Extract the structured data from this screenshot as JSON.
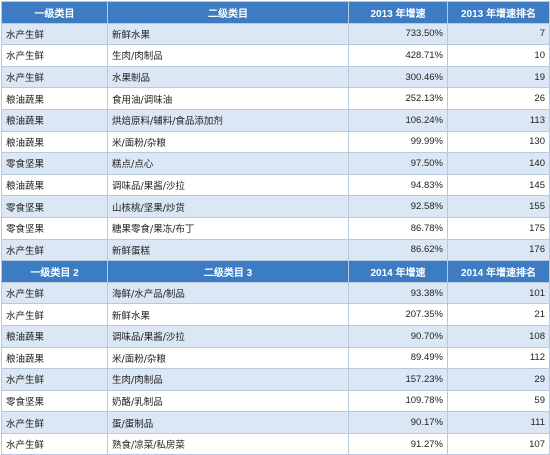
{
  "section1": {
    "headers": [
      "一级类目",
      "二级类目",
      "2013 年增速",
      "2013 年增速排名"
    ],
    "rows": [
      {
        "cat1": "水产生鲜",
        "cat2": "新鲜水果",
        "growth": "733.50%",
        "rank": "7"
      },
      {
        "cat1": "水产生鲜",
        "cat2": "生肉/肉制品",
        "growth": "428.71%",
        "rank": "10"
      },
      {
        "cat1": "水产生鲜",
        "cat2": "水果制品",
        "growth": "300.46%",
        "rank": "19"
      },
      {
        "cat1": "粮油蔬果",
        "cat2": "食用油/调味油",
        "growth": "252.13%",
        "rank": "26"
      },
      {
        "cat1": "粮油蔬果",
        "cat2": "烘焙原料/辅料/食品添加剂",
        "growth": "106.24%",
        "rank": "113"
      },
      {
        "cat1": "粮油蔬果",
        "cat2": "米/面粉/杂粮",
        "growth": "99.99%",
        "rank": "130"
      },
      {
        "cat1": "零食坚果",
        "cat2": "糕点/点心",
        "growth": "97.50%",
        "rank": "140"
      },
      {
        "cat1": "粮油蔬果",
        "cat2": "调味品/果酱/沙拉",
        "growth": "94.83%",
        "rank": "145"
      },
      {
        "cat1": "零食坚果",
        "cat2": "山核桃/坚果/炒货",
        "growth": "92.58%",
        "rank": "155"
      },
      {
        "cat1": "零食坚果",
        "cat2": "糖果零食/果冻/布丁",
        "growth": "86.78%",
        "rank": "175"
      },
      {
        "cat1": "水产生鲜",
        "cat2": "新鲜蛋糕",
        "growth": "86.62%",
        "rank": "176"
      }
    ]
  },
  "section2": {
    "headers": [
      "一级类目 2",
      "二级类目 3",
      "2014 年增速",
      "2014 年增速排名"
    ],
    "rows": [
      {
        "cat1": "水产生鲜",
        "cat2": "海鲜/水产品/制品",
        "growth": "93.38%",
        "rank": "101"
      },
      {
        "cat1": "水产生鲜",
        "cat2": "新鲜水果",
        "growth": "207.35%",
        "rank": "21"
      },
      {
        "cat1": "粮油蔬果",
        "cat2": "调味品/果酱/沙拉",
        "growth": "90.70%",
        "rank": "108"
      },
      {
        "cat1": "粮油蔬果",
        "cat2": "米/面粉/杂粮",
        "growth": "89.49%",
        "rank": "112"
      },
      {
        "cat1": "水产生鲜",
        "cat2": "生肉/肉制品",
        "growth": "157.23%",
        "rank": "29"
      },
      {
        "cat1": "零食坚果",
        "cat2": "奶酪/乳制品",
        "growth": "109.78%",
        "rank": "59"
      },
      {
        "cat1": "水产生鲜",
        "cat2": "蛋/蛋制品",
        "growth": "90.17%",
        "rank": "111"
      },
      {
        "cat1": "水产生鲜",
        "cat2": "熟食/凉菜/私房菜",
        "growth": "91.27%",
        "rank": "107"
      }
    ]
  }
}
